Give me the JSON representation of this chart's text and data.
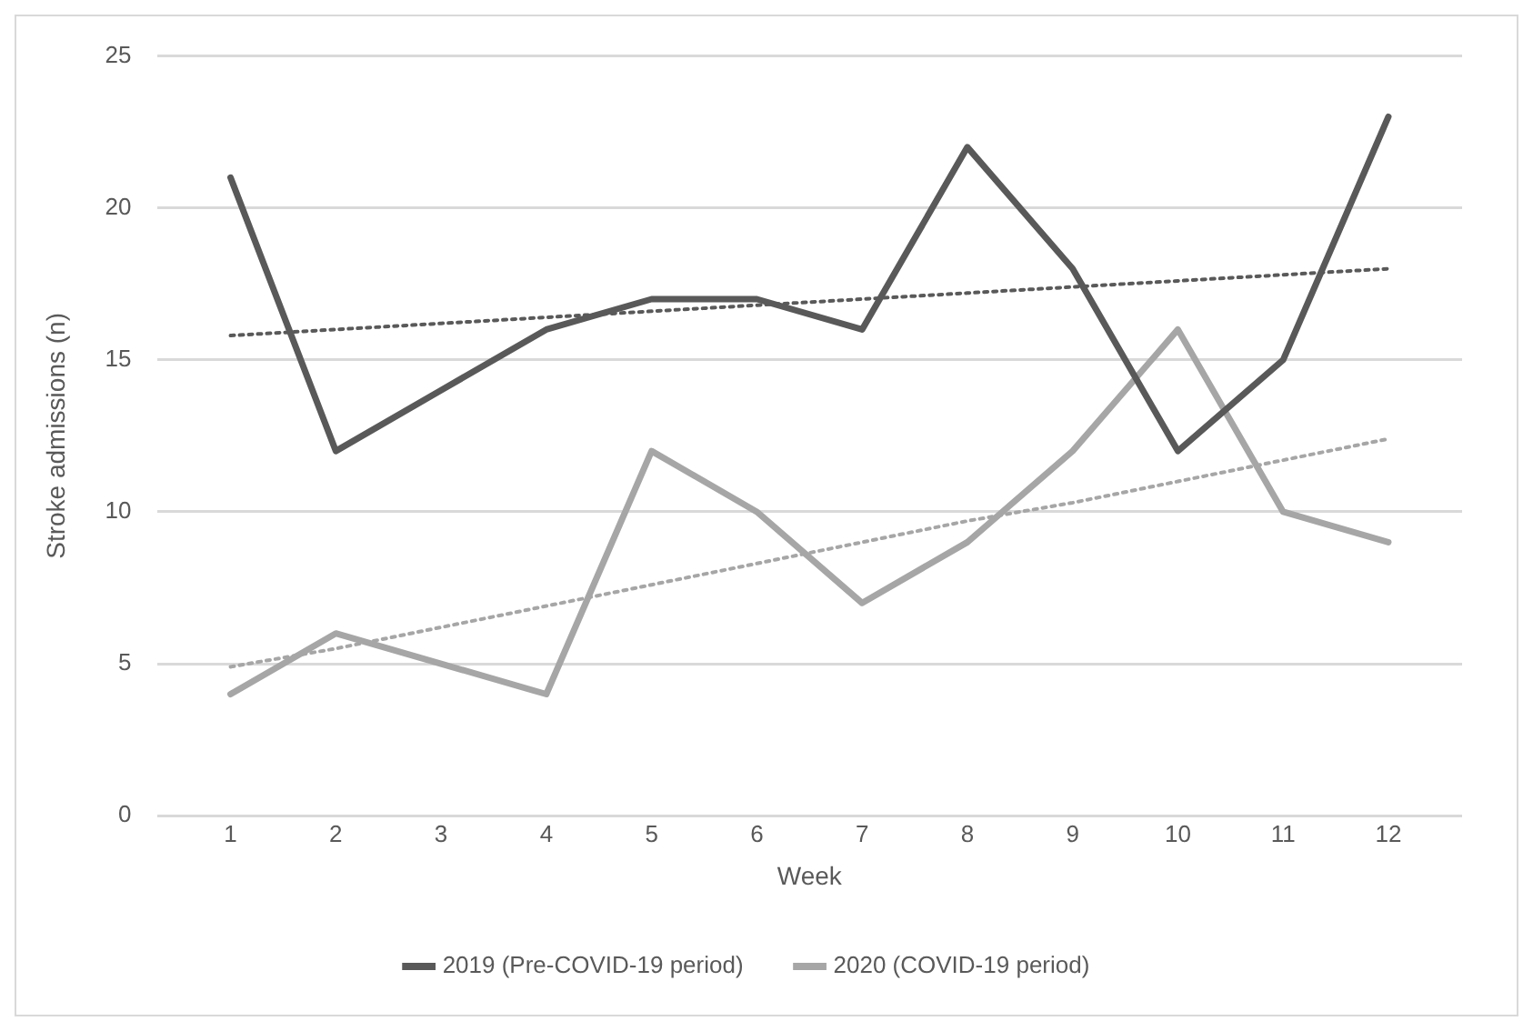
{
  "chart_data": {
    "type": "line",
    "xlabel": "Week",
    "ylabel": "Stroke admissions (n)",
    "x": [
      1,
      2,
      3,
      4,
      5,
      6,
      7,
      8,
      9,
      10,
      11,
      12
    ],
    "xlim": [
      0.3,
      12.7
    ],
    "xticks": [
      1,
      2,
      3,
      4,
      5,
      6,
      7,
      8,
      9,
      10,
      11,
      12
    ],
    "ylim": [
      0,
      25
    ],
    "yticks": [
      0,
      5,
      10,
      15,
      20,
      25
    ],
    "series": [
      {
        "name": "2019 (Pre-COVID-19 period)",
        "color": "#595959",
        "values": [
          21,
          12,
          14,
          16,
          17,
          17,
          16,
          22,
          18,
          12,
          15,
          23
        ]
      },
      {
        "name": "2020 (COVID-19 period)",
        "color": "#a6a6a6",
        "values": [
          4,
          6,
          5,
          4,
          12,
          10,
          7,
          9,
          12,
          16,
          10,
          9
        ]
      },
      {
        "type": "line",
        "color": "#595959",
        "line_style": "dotted",
        "values": [
          15.8,
          16.0,
          16.2,
          16.4,
          16.6,
          16.8,
          17.0,
          17.2,
          17.4,
          17.6,
          17.8,
          18.0
        ]
      },
      {
        "type": "line",
        "color": "#a6a6a6",
        "line_style": "dotted",
        "values": [
          4.9,
          5.5,
          6.2,
          6.9,
          7.6,
          8.3,
          9.0,
          9.7,
          10.3,
          11.0,
          11.7,
          12.4
        ]
      }
    ],
    "grid": "y",
    "legend": "bottom",
    "marker": "none",
    "line_style": "solid"
  }
}
